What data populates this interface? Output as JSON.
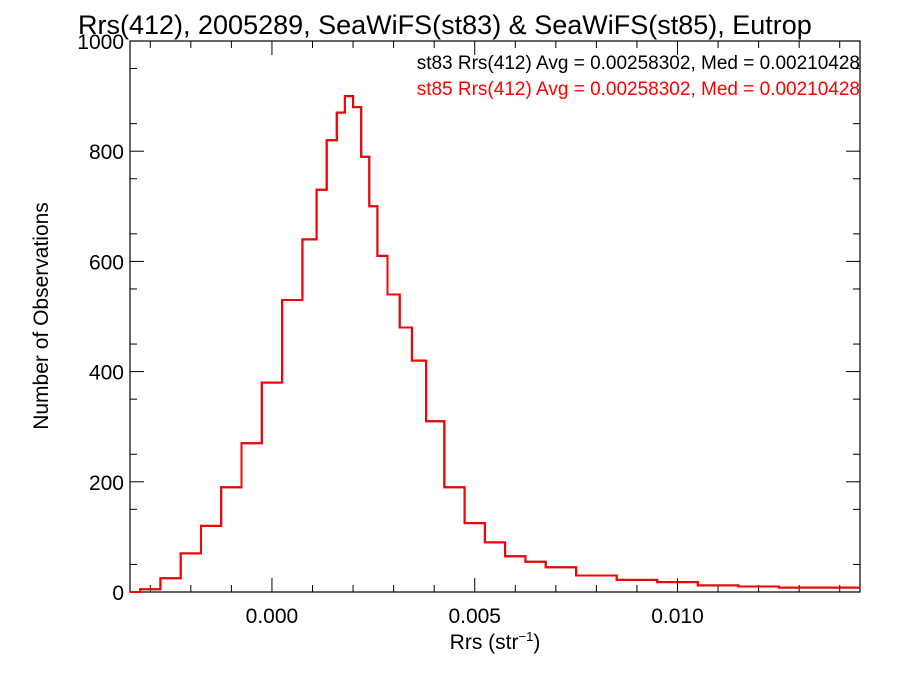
{
  "chart_data": {
    "type": "histogram",
    "title": "Rrs(412), 2005289, SeaWiFS(st83) & SeaWiFS(st85), Eutrop",
    "xlabel": "Rrs (str",
    "xlabel_sup": "−1",
    "xlabel_end": ")",
    "ylabel": "Number of Observations",
    "xlim": [
      -0.0035,
      0.0145
    ],
    "ylim": [
      0,
      1000
    ],
    "x_ticks": [
      0.0,
      0.005,
      0.01
    ],
    "x_tick_labels": [
      "0.000",
      "0.005",
      "0.010"
    ],
    "y_ticks": [
      0,
      200,
      400,
      600,
      800,
      1000
    ],
    "y_tick_labels": [
      "0",
      "200",
      "400",
      "600",
      "800",
      "1000"
    ],
    "grid": false,
    "legend_position": "top-right",
    "legend": [
      {
        "text": "st83 Rrs(412) Avg = 0.00258302, Med = 0.00210428",
        "color": "#000000"
      },
      {
        "text": "st85 Rrs(412) Avg = 0.00258302, Med = 0.00210428",
        "color": "#ff0000"
      }
    ],
    "series": [
      {
        "name": "st83",
        "color": "#000000",
        "x": [
          -0.0035,
          -0.003,
          -0.0025,
          -0.002,
          -0.0015,
          -0.001,
          -0.0005,
          0.0,
          0.0005,
          0.001,
          0.0012,
          0.0015,
          0.0017,
          0.0019,
          0.0021,
          0.0023,
          0.0025,
          0.0027,
          0.003,
          0.0033,
          0.0036,
          0.004,
          0.0045,
          0.005,
          0.0055,
          0.006,
          0.0065,
          0.007,
          0.008,
          0.009,
          0.01,
          0.011,
          0.012,
          0.013,
          0.014,
          0.0145
        ],
        "y": [
          0,
          5,
          25,
          70,
          120,
          190,
          270,
          380,
          530,
          640,
          730,
          820,
          870,
          900,
          880,
          790,
          700,
          610,
          540,
          480,
          420,
          310,
          190,
          125,
          90,
          65,
          55,
          45,
          30,
          22,
          18,
          12,
          10,
          8,
          8,
          8
        ]
      },
      {
        "name": "st85",
        "color": "#ff0000",
        "x": [
          -0.0035,
          -0.003,
          -0.0025,
          -0.002,
          -0.0015,
          -0.001,
          -0.0005,
          0.0,
          0.0005,
          0.001,
          0.0012,
          0.0015,
          0.0017,
          0.0019,
          0.0021,
          0.0023,
          0.0025,
          0.0027,
          0.003,
          0.0033,
          0.0036,
          0.004,
          0.0045,
          0.005,
          0.0055,
          0.006,
          0.0065,
          0.007,
          0.008,
          0.009,
          0.01,
          0.011,
          0.012,
          0.013,
          0.014,
          0.0145
        ],
        "y": [
          0,
          5,
          25,
          70,
          120,
          190,
          270,
          380,
          530,
          640,
          730,
          820,
          870,
          900,
          880,
          790,
          700,
          610,
          540,
          480,
          420,
          310,
          190,
          125,
          90,
          65,
          55,
          45,
          30,
          22,
          18,
          12,
          10,
          8,
          8,
          8
        ]
      }
    ]
  }
}
